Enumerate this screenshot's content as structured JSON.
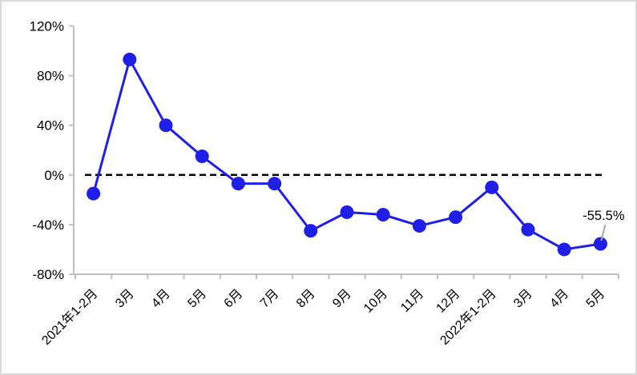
{
  "chart_data": {
    "type": "line",
    "title": "",
    "xlabel": "",
    "ylabel": "",
    "categories": [
      "2021年1-2月",
      "3月",
      "4月",
      "5月",
      "6月",
      "7月",
      "8月",
      "9月",
      "10月",
      "11月",
      "12月",
      "2022年1-2月",
      "3月",
      "4月",
      "5月"
    ],
    "values": [
      -15,
      93,
      40,
      15,
      -7,
      -7,
      -45,
      -30,
      -32,
      -41,
      -34,
      -10,
      -44,
      -60,
      -55.5
    ],
    "ylim": [
      -80,
      120
    ],
    "ytick_values": [
      120,
      80,
      40,
      0,
      -40,
      -80
    ],
    "ytick_labels": [
      "120%",
      "80%",
      "40%",
      "0%",
      "-40%",
      "-80%"
    ],
    "grid": false,
    "legend_position": "none",
    "zero_line_style": "dashed",
    "annotation": {
      "text": "-55.5%",
      "index": 14
    },
    "colors": {
      "line": "#1f1fe8",
      "marker": "#1f1fe8",
      "zero_line": "#000000",
      "axis": "#c0c0c0",
      "leader_line": "#a6a6a6",
      "text": "#000000",
      "border": "#dadada",
      "background": "#ffffff"
    }
  }
}
